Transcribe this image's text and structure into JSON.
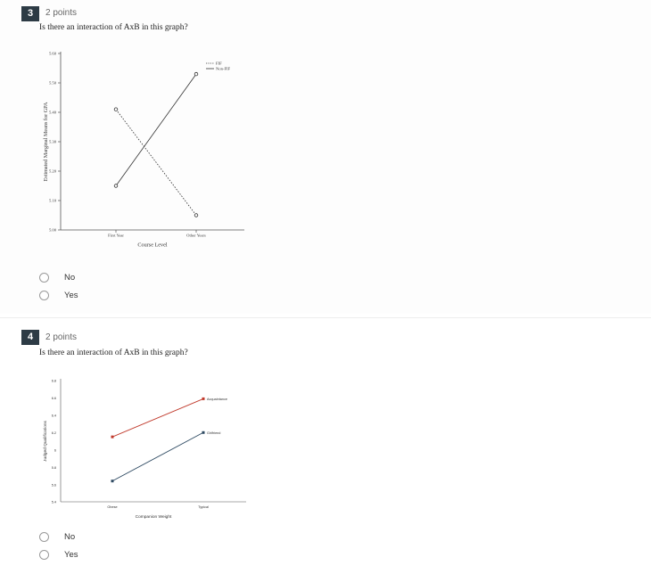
{
  "questions": [
    {
      "number": "3",
      "points": "2 points",
      "prompt": "Is there an interaction of AxB in this graph?",
      "choices": [
        "No",
        "Yes"
      ]
    },
    {
      "number": "4",
      "points": "2 points",
      "prompt": "Is there an interaction of AxB in this graph?",
      "choices": [
        "No",
        "Yes"
      ]
    }
  ],
  "chart_data": [
    {
      "type": "line",
      "xlabel": "Course Level",
      "ylabel": "Estimated Marginal Means for GPA",
      "categories": [
        "First Year",
        "Other Years"
      ],
      "y_ticks": [
        "5.00",
        "5.10",
        "5.20",
        "5.30",
        "5.40",
        "5.50",
        "5.60"
      ],
      "ylim": [
        5.0,
        5.6
      ],
      "legend_position": "top-right",
      "series": [
        {
          "name": "FIF",
          "values": [
            5.41,
            5.05
          ],
          "style": "dotted",
          "color": "#333333"
        },
        {
          "name": "Non-FIF",
          "values": [
            5.15,
            5.53
          ],
          "style": "solid",
          "color": "#333333"
        }
      ]
    },
    {
      "type": "line",
      "xlabel": "Companion Weight",
      "ylabel": "Judged Qualifications",
      "categories": [
        "Obese",
        "Typical"
      ],
      "y_ticks": [
        "5.4",
        "5.6",
        "5.8",
        "6",
        "6.2",
        "6.4",
        "6.6",
        "6.8"
      ],
      "ylim": [
        5.4,
        6.8
      ],
      "legend_position": "none",
      "series": [
        {
          "name": "Acquaintance",
          "values": [
            6.15,
            6.59
          ],
          "color": "#c0392b"
        },
        {
          "name": "Girlfriend",
          "values": [
            5.64,
            6.2
          ],
          "color": "#2e4a62"
        }
      ]
    }
  ]
}
